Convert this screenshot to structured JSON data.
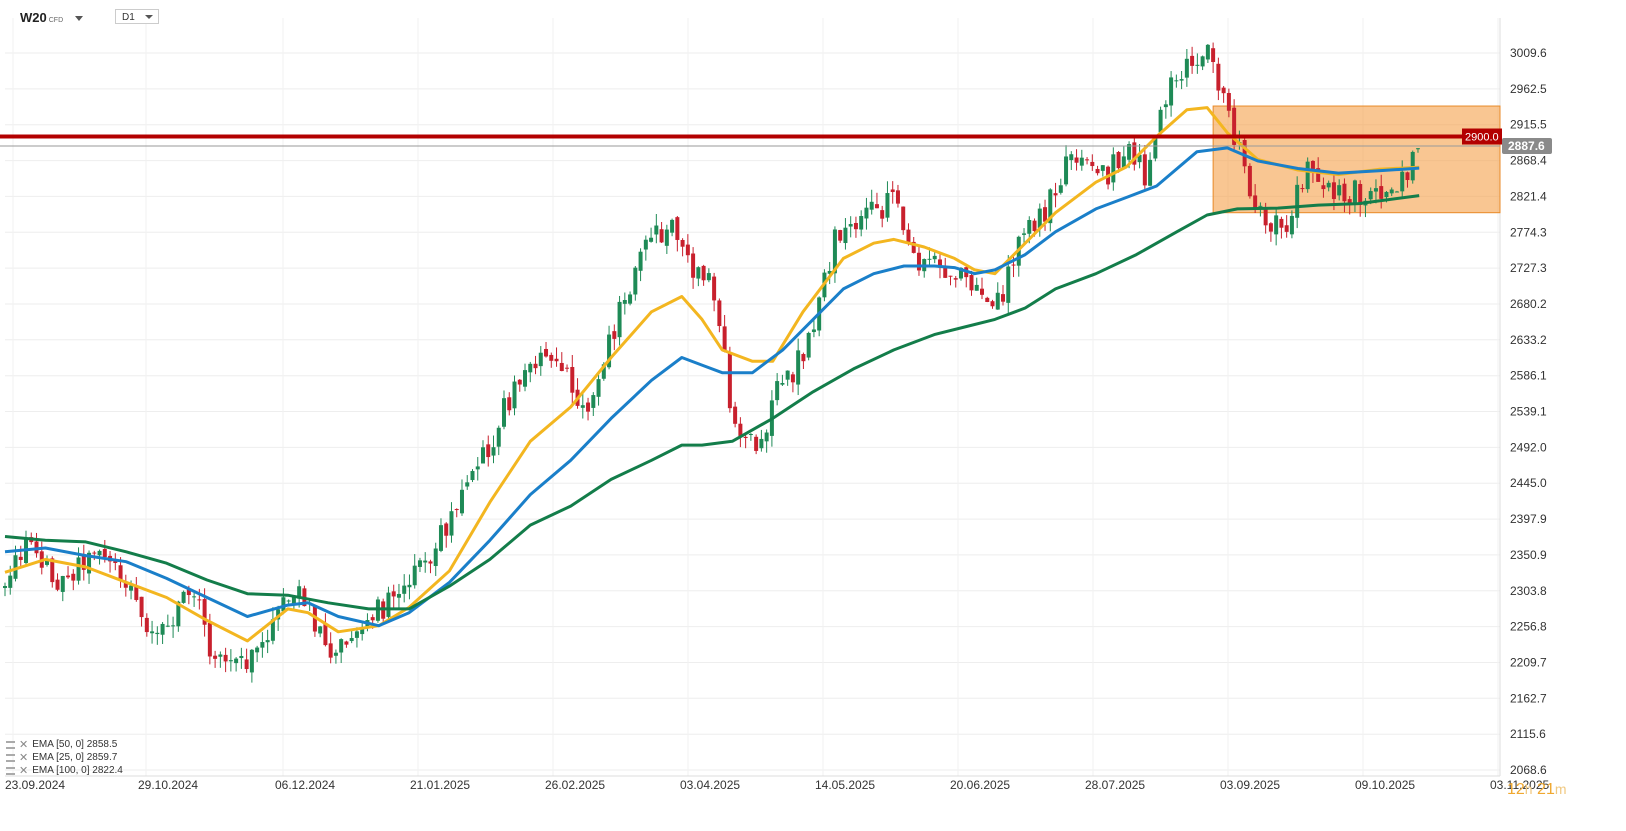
{
  "symbol": {
    "name": "W20",
    "type": "CFD"
  },
  "timeframe": "D1",
  "timer": {
    "hours": "12",
    "h_unit": "h",
    "minutes": "21",
    "m_unit": "m"
  },
  "colors": {
    "up": "#1e8a56",
    "down": "#c8202d",
    "ema50": "#1a7fc9",
    "ema25": "#f3b620",
    "ema100": "#137d4a",
    "level": "#b30000",
    "zone": "#f5a04a"
  },
  "legend": [
    {
      "label": "EMA [50, 0] 2858.5"
    },
    {
      "label": "EMA [25, 0] 2859.7"
    },
    {
      "label": "EMA [100, 0] 2822.4"
    }
  ],
  "chart_data": {
    "type": "line",
    "title": "",
    "xlabel": "",
    "ylabel": "",
    "ylim": [
      2050.0,
      3050.0
    ],
    "x_ticks": [
      "23.09.2024",
      "29.10.2024",
      "06.12.2024",
      "21.01.2025",
      "26.02.2025",
      "03.04.2025",
      "14.05.2025",
      "20.06.2025",
      "28.07.2025",
      "03.09.2025",
      "09.10.2025",
      "03.11.2025"
    ],
    "y_ticks": [
      "3009.6",
      "2962.5",
      "2915.5",
      "2868.4",
      "2821.4",
      "2774.3",
      "2727.3",
      "2680.2",
      "2633.2",
      "2586.1",
      "2539.1",
      "2492.0",
      "2445.0",
      "2397.9",
      "2350.9",
      "2303.8",
      "2256.8",
      "2209.7",
      "2162.7",
      "2115.6",
      "2068.6"
    ],
    "price_close": [
      [
        0,
        2305
      ],
      [
        10,
        2368
      ],
      [
        20,
        2330
      ],
      [
        30,
        2310
      ],
      [
        40,
        2346
      ],
      [
        50,
        2346
      ],
      [
        60,
        2316
      ],
      [
        70,
        2263
      ],
      [
        80,
        2246
      ],
      [
        90,
        2296
      ],
      [
        95,
        2300
      ],
      [
        100,
        2239
      ],
      [
        110,
        2202
      ],
      [
        115,
        2228
      ],
      [
        120,
        2212
      ],
      [
        125,
        2228
      ],
      [
        130,
        2252
      ],
      [
        140,
        2293
      ],
      [
        145,
        2302
      ],
      [
        150,
        2287
      ],
      [
        155,
        2248
      ],
      [
        160,
        2229
      ],
      [
        165,
        2224
      ],
      [
        170,
        2242
      ],
      [
        175,
        2266
      ],
      [
        185,
        2280
      ],
      [
        195,
        2290
      ],
      [
        205,
        2330
      ],
      [
        215,
        2375
      ],
      [
        225,
        2415
      ],
      [
        235,
        2465
      ],
      [
        245,
        2530
      ],
      [
        255,
        2590
      ],
      [
        265,
        2610
      ],
      [
        275,
        2595
      ],
      [
        285,
        2545
      ],
      [
        295,
        2570
      ],
      [
        300,
        2640
      ],
      [
        310,
        2710
      ],
      [
        320,
        2770
      ],
      [
        330,
        2780
      ],
      [
        340,
        2730
      ],
      [
        350,
        2700
      ],
      [
        360,
        2540
      ],
      [
        365,
        2500
      ],
      [
        375,
        2500
      ],
      [
        380,
        2560
      ],
      [
        385,
        2580
      ],
      [
        390,
        2590
      ],
      [
        400,
        2650
      ],
      [
        410,
        2760
      ],
      [
        420,
        2780
      ],
      [
        430,
        2800
      ],
      [
        440,
        2820
      ],
      [
        450,
        2740
      ],
      [
        460,
        2740
      ],
      [
        470,
        2720
      ],
      [
        480,
        2700
      ],
      [
        490,
        2670
      ],
      [
        495,
        2700
      ],
      [
        505,
        2780
      ],
      [
        515,
        2800
      ],
      [
        525,
        2860
      ],
      [
        535,
        2870
      ],
      [
        545,
        2850
      ],
      [
        555,
        2880
      ],
      [
        565,
        2850
      ],
      [
        575,
        2960
      ],
      [
        585,
        2990
      ],
      [
        595,
        3010
      ],
      [
        605,
        2930
      ],
      [
        615,
        2840
      ],
      [
        625,
        2790
      ],
      [
        635,
        2790
      ],
      [
        645,
        2860
      ],
      [
        655,
        2830
      ],
      [
        665,
        2830
      ],
      [
        675,
        2820
      ],
      [
        685,
        2830
      ],
      [
        695,
        2860
      ],
      [
        700,
        2887.6
      ]
    ],
    "price_day_index_note_none": null,
    "series": [
      {
        "name": "EMA [25, 0]",
        "color": "#f3b620",
        "values": [
          [
            0,
            2328
          ],
          [
            20,
            2345
          ],
          [
            40,
            2335
          ],
          [
            60,
            2315
          ],
          [
            80,
            2295
          ],
          [
            100,
            2265
          ],
          [
            120,
            2238
          ],
          [
            140,
            2280
          ],
          [
            150,
            2275
          ],
          [
            165,
            2250
          ],
          [
            185,
            2258
          ],
          [
            200,
            2282
          ],
          [
            220,
            2330
          ],
          [
            240,
            2420
          ],
          [
            260,
            2500
          ],
          [
            280,
            2545
          ],
          [
            300,
            2610
          ],
          [
            320,
            2670
          ],
          [
            335,
            2690
          ],
          [
            345,
            2660
          ],
          [
            355,
            2620
          ],
          [
            370,
            2605
          ],
          [
            380,
            2605
          ],
          [
            395,
            2670
          ],
          [
            415,
            2740
          ],
          [
            430,
            2760
          ],
          [
            440,
            2765
          ],
          [
            455,
            2755
          ],
          [
            470,
            2740
          ],
          [
            480,
            2725
          ],
          [
            490,
            2720
          ],
          [
            505,
            2760
          ],
          [
            520,
            2800
          ],
          [
            540,
            2840
          ],
          [
            555,
            2860
          ],
          [
            570,
            2900
          ],
          [
            585,
            2935
          ],
          [
            595,
            2938
          ],
          [
            605,
            2905
          ],
          [
            620,
            2870
          ],
          [
            640,
            2856
          ],
          [
            660,
            2850
          ],
          [
            680,
            2857
          ],
          [
            700,
            2859.7
          ]
        ]
      },
      {
        "name": "EMA [50, 0]",
        "color": "#1a7fc9",
        "values": [
          [
            0,
            2355
          ],
          [
            20,
            2360
          ],
          [
            40,
            2350
          ],
          [
            60,
            2342
          ],
          [
            80,
            2320
          ],
          [
            100,
            2295
          ],
          [
            120,
            2270
          ],
          [
            140,
            2285
          ],
          [
            150,
            2288
          ],
          [
            165,
            2270
          ],
          [
            185,
            2258
          ],
          [
            200,
            2275
          ],
          [
            220,
            2315
          ],
          [
            240,
            2370
          ],
          [
            260,
            2430
          ],
          [
            280,
            2475
          ],
          [
            300,
            2530
          ],
          [
            320,
            2580
          ],
          [
            335,
            2610
          ],
          [
            345,
            2600
          ],
          [
            355,
            2590
          ],
          [
            370,
            2590
          ],
          [
            385,
            2620
          ],
          [
            400,
            2660
          ],
          [
            415,
            2700
          ],
          [
            430,
            2720
          ],
          [
            445,
            2730
          ],
          [
            460,
            2730
          ],
          [
            470,
            2728
          ],
          [
            480,
            2720
          ],
          [
            490,
            2725
          ],
          [
            505,
            2745
          ],
          [
            520,
            2775
          ],
          [
            540,
            2805
          ],
          [
            555,
            2820
          ],
          [
            570,
            2835
          ],
          [
            590,
            2880
          ],
          [
            605,
            2885
          ],
          [
            620,
            2868
          ],
          [
            640,
            2858
          ],
          [
            660,
            2852
          ],
          [
            680,
            2855
          ],
          [
            700,
            2858.5
          ]
        ]
      },
      {
        "name": "EMA [100, 0]",
        "color": "#137d4a",
        "values": [
          [
            0,
            2375
          ],
          [
            20,
            2370
          ],
          [
            40,
            2368
          ],
          [
            60,
            2355
          ],
          [
            80,
            2340
          ],
          [
            100,
            2318
          ],
          [
            120,
            2300
          ],
          [
            140,
            2298
          ],
          [
            160,
            2288
          ],
          [
            180,
            2280
          ],
          [
            200,
            2280
          ],
          [
            220,
            2310
          ],
          [
            240,
            2345
          ],
          [
            260,
            2390
          ],
          [
            280,
            2415
          ],
          [
            300,
            2450
          ],
          [
            320,
            2475
          ],
          [
            335,
            2495
          ],
          [
            345,
            2495
          ],
          [
            360,
            2500
          ],
          [
            380,
            2530
          ],
          [
            400,
            2565
          ],
          [
            420,
            2595
          ],
          [
            440,
            2620
          ],
          [
            460,
            2640
          ],
          [
            475,
            2650
          ],
          [
            490,
            2660
          ],
          [
            505,
            2675
          ],
          [
            520,
            2700
          ],
          [
            540,
            2720
          ],
          [
            560,
            2745
          ],
          [
            580,
            2775
          ],
          [
            595,
            2797
          ],
          [
            610,
            2805
          ],
          [
            630,
            2806
          ],
          [
            650,
            2810
          ],
          [
            670,
            2812
          ],
          [
            700,
            2822.4
          ]
        ]
      }
    ],
    "annotations": [
      {
        "type": "hline",
        "y": 2900.0,
        "label": "2900.0"
      },
      {
        "type": "last_price",
        "y": 2887.6,
        "label": "2887.6"
      },
      {
        "type": "zone",
        "x": [
          598,
          740
        ],
        "y": [
          2800,
          2940
        ]
      }
    ]
  }
}
